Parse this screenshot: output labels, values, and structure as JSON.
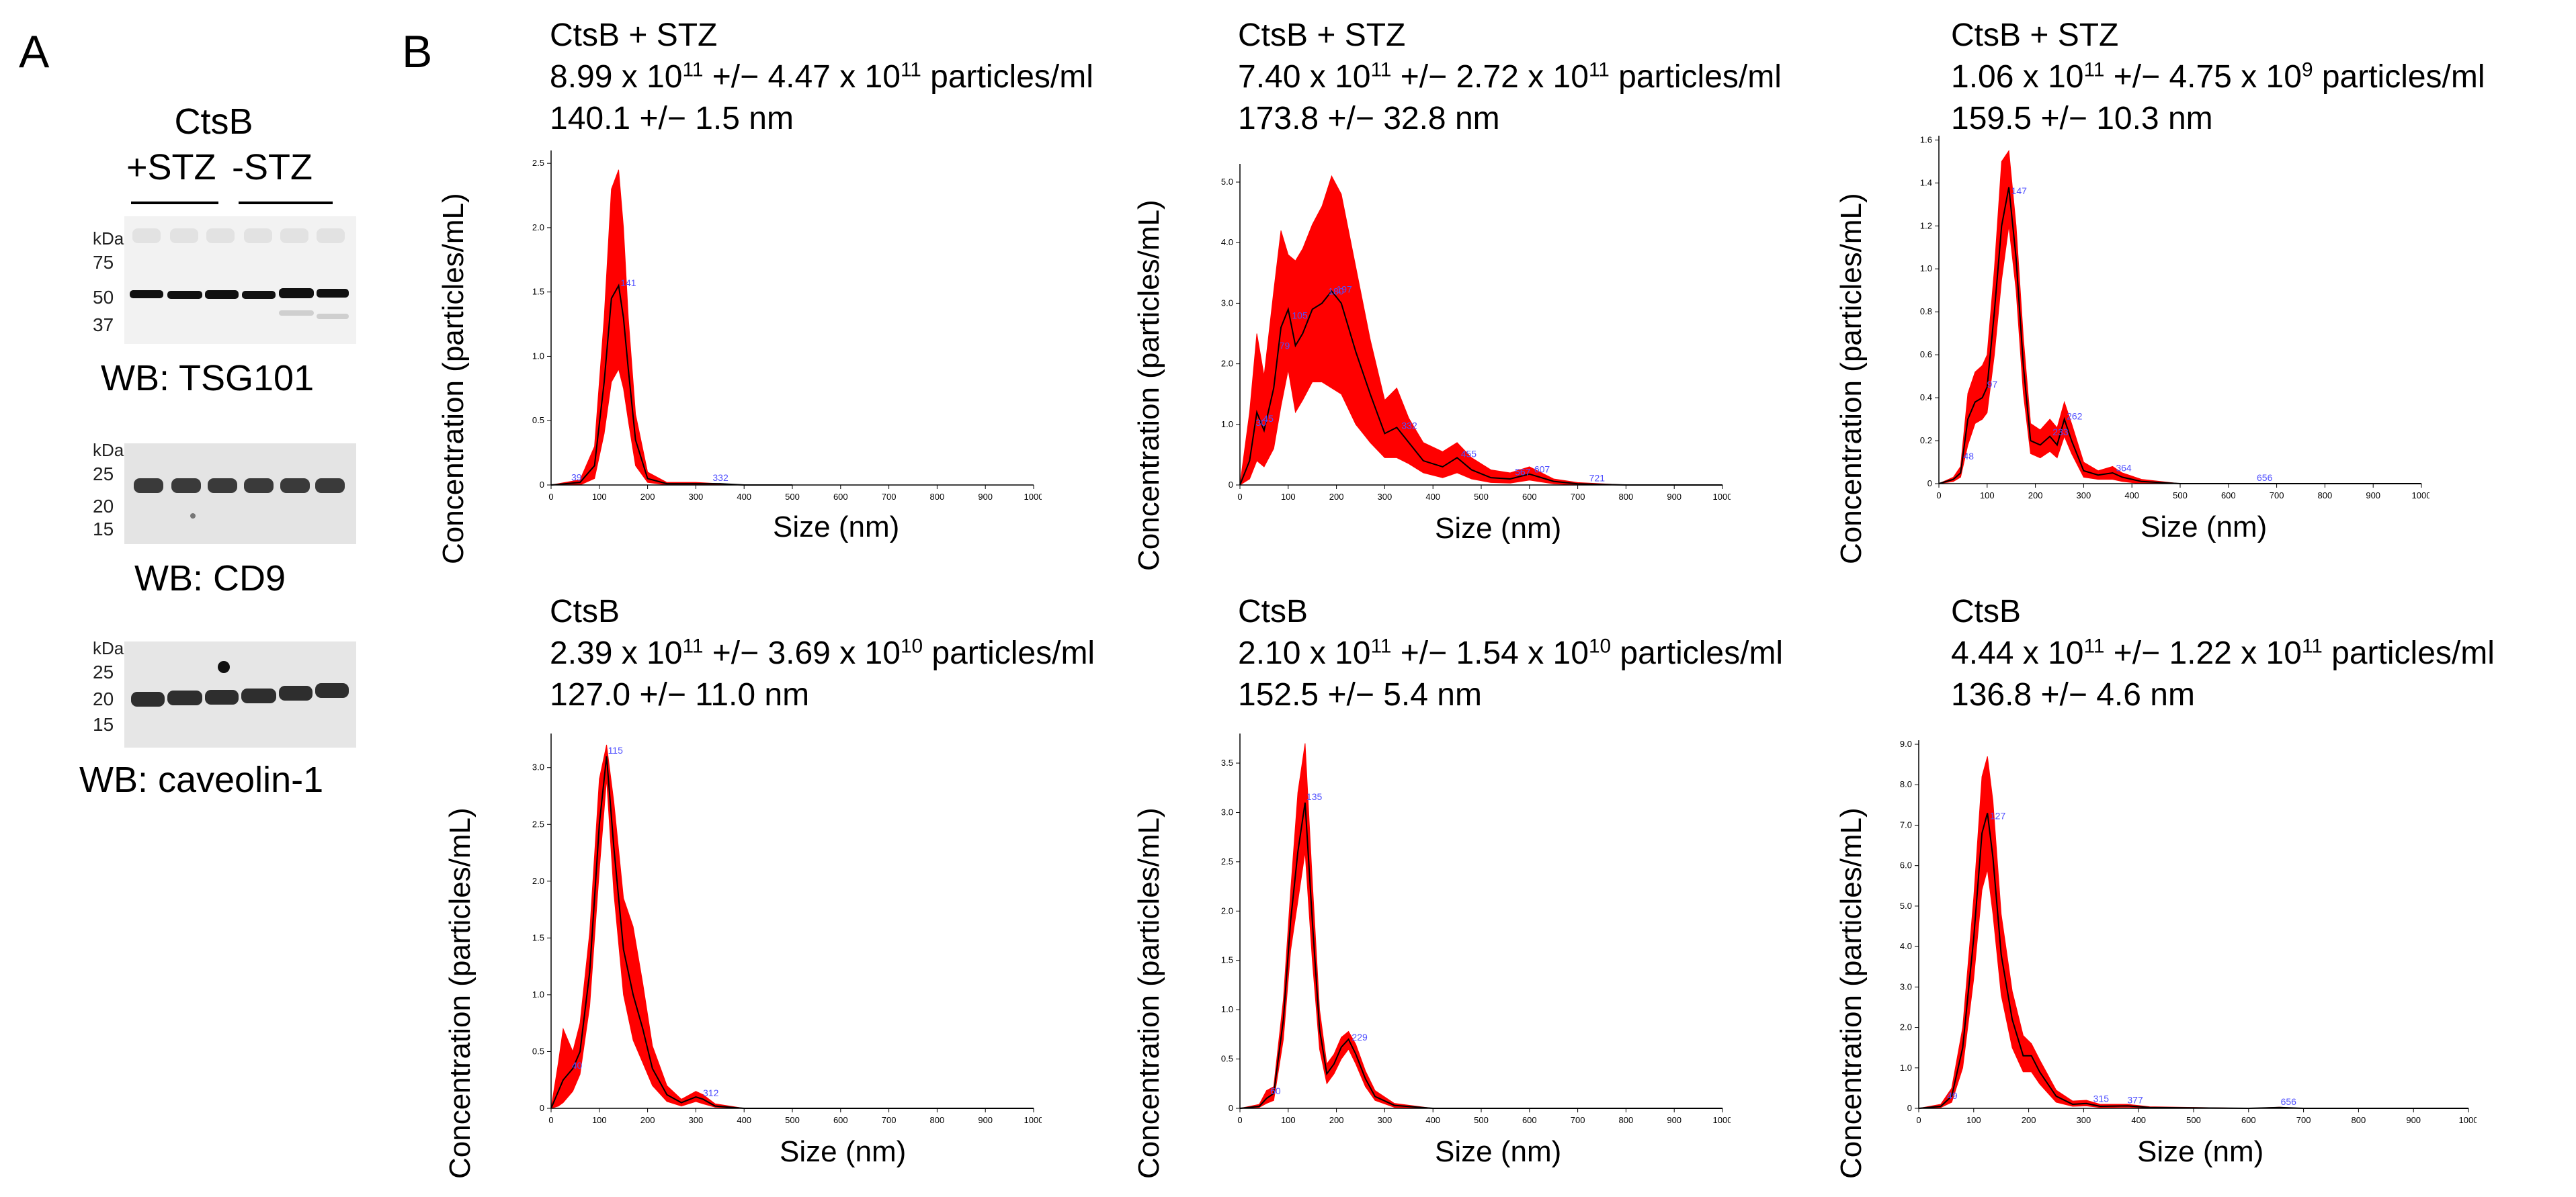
{
  "panel_a": {
    "letter": "A",
    "title_line1": "CtsB",
    "title_plus": "+STZ",
    "title_minus": "-STZ",
    "blots": [
      {
        "id": "tsg101",
        "kda_label": "kDa",
        "markers": [
          "75",
          "50",
          "37"
        ],
        "caption": "WB:  TSG101"
      },
      {
        "id": "cd9",
        "kda_label": "kDa",
        "markers": [
          "25",
          "20",
          "15"
        ],
        "caption": "WB:  CD9"
      },
      {
        "id": "cav1",
        "kda_label": "kDa",
        "markers": [
          "25",
          "20",
          "15"
        ],
        "caption": "WB:  caveolin-1"
      }
    ]
  },
  "panel_b": {
    "letter": "B",
    "accent_color": "#ff0000",
    "line_color": "#000000",
    "peak_label_color": "#5050ff",
    "ylabel": "Concentration  (particles/mL)",
    "xlabel": "Size (nm)"
  },
  "chart_data": [
    {
      "type": "area",
      "group": "CtsB + STZ",
      "header": {
        "name": "CtsB + STZ",
        "conc_a": "8.99",
        "conc_a_exp": "11",
        "conc_b": "4.47",
        "conc_b_exp": "11",
        "size": "140.1 +/− 1.5 nm"
      },
      "xlabel": "Size (nm)",
      "ylabel": "Concentration  (particles/mL)",
      "xlim": [
        0,
        1000
      ],
      "ylim": [
        0,
        2.6
      ],
      "xticks": [
        "0",
        "100",
        "200",
        "300",
        "400",
        "500",
        "600",
        "700",
        "800",
        "900",
        "1000"
      ],
      "yticks": [
        "0",
        "0.5",
        "1.0",
        "1.5",
        "2.0",
        "2.5"
      ],
      "x": [
        0,
        30,
        60,
        90,
        110,
        125,
        140,
        150,
        160,
        175,
        200,
        240,
        300,
        350,
        400,
        500
      ],
      "mean": [
        0,
        0.01,
        0.02,
        0.15,
        0.8,
        1.45,
        1.55,
        1.3,
        0.9,
        0.35,
        0.05,
        0.01,
        0.01,
        0.01,
        0,
        0
      ],
      "upper": [
        0,
        0.02,
        0.04,
        0.3,
        1.3,
        2.3,
        2.45,
        2.0,
        1.3,
        0.55,
        0.1,
        0.02,
        0.02,
        0.01,
        0,
        0
      ],
      "lower": [
        0,
        0,
        0,
        0.05,
        0.4,
        0.8,
        0.9,
        0.75,
        0.5,
        0.15,
        0.02,
        0,
        0,
        0,
        0,
        0
      ],
      "peaks": [
        {
          "x": 39,
          "label": "39"
        },
        {
          "x": 141,
          "label": "141"
        },
        {
          "x": 332,
          "label": "332"
        }
      ]
    },
    {
      "type": "area",
      "group": "CtsB + STZ",
      "header": {
        "name": "CtsB + STZ",
        "conc_a": "7.40",
        "conc_a_exp": "11",
        "conc_b": "2.72",
        "conc_b_exp": "11",
        "size": "173.8 +/− 32.8 nm"
      },
      "xlabel": "Size (nm)",
      "ylabel": "Concentration  (particles/mL)",
      "xlim": [
        0,
        1000
      ],
      "ylim": [
        0,
        5.3
      ],
      "xticks": [
        "0",
        "100",
        "200",
        "300",
        "400",
        "500",
        "600",
        "700",
        "800",
        "900",
        "1000"
      ],
      "yticks": [
        "0",
        "1.0",
        "2.0",
        "3.0",
        "4.0",
        "5.0"
      ],
      "x": [
        0,
        20,
        35,
        50,
        70,
        85,
        100,
        115,
        130,
        150,
        170,
        190,
        210,
        240,
        270,
        300,
        325,
        350,
        380,
        420,
        450,
        480,
        520,
        560,
        600,
        650,
        700,
        800,
        1000
      ],
      "mean": [
        0,
        0.4,
        1.2,
        0.9,
        1.6,
        2.6,
        2.9,
        2.3,
        2.5,
        2.9,
        3.0,
        3.2,
        3.0,
        2.2,
        1.5,
        0.85,
        0.95,
        0.7,
        0.4,
        0.3,
        0.45,
        0.25,
        0.12,
        0.1,
        0.18,
        0.06,
        0.02,
        0,
        0
      ],
      "upper": [
        0,
        1.2,
        2.5,
        1.8,
        3.2,
        4.2,
        3.8,
        3.7,
        3.9,
        4.3,
        4.6,
        5.1,
        4.8,
        3.6,
        2.4,
        1.4,
        1.6,
        1.1,
        0.7,
        0.55,
        0.7,
        0.45,
        0.25,
        0.2,
        0.3,
        0.1,
        0.04,
        0,
        0
      ],
      "lower": [
        0,
        0.1,
        0.4,
        0.3,
        0.6,
        1.3,
        1.9,
        1.2,
        1.4,
        1.7,
        1.7,
        1.6,
        1.5,
        1.0,
        0.7,
        0.45,
        0.45,
        0.35,
        0.2,
        0.12,
        0.2,
        0.1,
        0.04,
        0.03,
        0.08,
        0.02,
        0,
        0,
        0
      ],
      "peaks": [
        {
          "x": 30,
          "label": "30"
        },
        {
          "x": 45,
          "label": "45"
        },
        {
          "x": 79,
          "label": "79"
        },
        {
          "x": 105,
          "label": "105"
        },
        {
          "x": 180,
          "label": "180"
        },
        {
          "x": 197,
          "label": "197"
        },
        {
          "x": 332,
          "label": "332"
        },
        {
          "x": 455,
          "label": "455"
        },
        {
          "x": 567,
          "label": "567"
        },
        {
          "x": 607,
          "label": "607"
        },
        {
          "x": 721,
          "label": "721"
        }
      ]
    },
    {
      "type": "area",
      "group": "CtsB + STZ",
      "header": {
        "name": "CtsB + STZ",
        "conc_a": "1.06",
        "conc_a_exp": "11",
        "conc_b": "4.75",
        "conc_b_exp": "9",
        "size": "159.5 +/− 10.3 nm"
      },
      "xlabel": "Size (nm)",
      "ylabel": "Concentration  (particles/mL)",
      "xlim": [
        0,
        1000
      ],
      "ylim": [
        0,
        1.62
      ],
      "xticks": [
        "0",
        "100",
        "200",
        "300",
        "400",
        "500",
        "600",
        "700",
        "800",
        "900",
        "1000"
      ],
      "yticks": [
        "0",
        "0.2",
        "0.4",
        "0.6",
        "0.8",
        "1.0",
        "1.2",
        "1.4",
        "1.6"
      ],
      "x": [
        0,
        30,
        45,
        60,
        75,
        90,
        100,
        115,
        130,
        145,
        160,
        175,
        190,
        210,
        230,
        245,
        260,
        275,
        300,
        330,
        360,
        380,
        420,
        500,
        700,
        1000
      ],
      "mean": [
        0,
        0.02,
        0.05,
        0.3,
        0.38,
        0.4,
        0.45,
        0.8,
        1.2,
        1.38,
        1.05,
        0.55,
        0.2,
        0.18,
        0.22,
        0.18,
        0.3,
        0.2,
        0.06,
        0.04,
        0.05,
        0.03,
        0.01,
        0,
        0,
        0
      ],
      "upper": [
        0,
        0.03,
        0.08,
        0.42,
        0.52,
        0.55,
        0.6,
        1.0,
        1.5,
        1.55,
        1.2,
        0.68,
        0.28,
        0.25,
        0.3,
        0.26,
        0.38,
        0.28,
        0.1,
        0.06,
        0.08,
        0.05,
        0.02,
        0,
        0,
        0
      ],
      "lower": [
        0,
        0.01,
        0.03,
        0.18,
        0.28,
        0.3,
        0.33,
        0.6,
        0.95,
        1.2,
        0.9,
        0.42,
        0.14,
        0.12,
        0.15,
        0.12,
        0.22,
        0.14,
        0.03,
        0.02,
        0.02,
        0.01,
        0,
        0,
        0,
        0
      ],
      "peaks": [
        {
          "x": 48,
          "label": "48"
        },
        {
          "x": 97,
          "label": "97"
        },
        {
          "x": 147,
          "label": "147"
        },
        {
          "x": 233,
          "label": "233"
        },
        {
          "x": 262,
          "label": "262"
        },
        {
          "x": 364,
          "label": "364"
        },
        {
          "x": 656,
          "label": "656"
        }
      ]
    },
    {
      "type": "area",
      "group": "CtsB",
      "header": {
        "name": "CtsB",
        "conc_a": "2.39",
        "conc_a_exp": "11",
        "conc_b": "3.69",
        "conc_b_exp": "10",
        "size": "127.0 +/− 11.0 nm"
      },
      "xlabel": "Size (nm)",
      "ylabel": "Concentration  (particles/mL)",
      "xlim": [
        0,
        1000
      ],
      "ylim": [
        0,
        3.3
      ],
      "xticks": [
        "0",
        "100",
        "200",
        "300",
        "400",
        "500",
        "600",
        "700",
        "800",
        "900",
        "1000"
      ],
      "yticks": [
        "0",
        "0.5",
        "1.0",
        "1.5",
        "2.0",
        "2.5",
        "3.0"
      ],
      "x": [
        0,
        15,
        25,
        35,
        45,
        60,
        80,
        100,
        115,
        130,
        150,
        170,
        190,
        210,
        240,
        270,
        300,
        315,
        340,
        400,
        1000
      ],
      "mean": [
        0,
        0.15,
        0.25,
        0.3,
        0.35,
        0.5,
        1.2,
        2.5,
        3.1,
        2.3,
        1.4,
        1.0,
        0.7,
        0.35,
        0.12,
        0.05,
        0.1,
        0.08,
        0.02,
        0,
        0
      ],
      "upper": [
        0,
        0.4,
        0.7,
        0.6,
        0.5,
        0.75,
        1.55,
        2.9,
        3.2,
        2.7,
        1.85,
        1.6,
        1.1,
        0.55,
        0.2,
        0.08,
        0.15,
        0.12,
        0.04,
        0,
        0
      ],
      "lower": [
        0,
        0.02,
        0.05,
        0.1,
        0.15,
        0.3,
        0.9,
        2.1,
        2.9,
        1.9,
        1.0,
        0.6,
        0.4,
        0.2,
        0.06,
        0.02,
        0.06,
        0.04,
        0.01,
        0,
        0
      ],
      "peaks": [
        {
          "x": 40,
          "label": "40"
        },
        {
          "x": 115,
          "label": "115"
        },
        {
          "x": 312,
          "label": "312"
        }
      ]
    },
    {
      "type": "area",
      "group": "CtsB",
      "header": {
        "name": "CtsB",
        "conc_a": "2.10",
        "conc_a_exp": "11",
        "conc_b": "1.54",
        "conc_b_exp": "10",
        "size": "152.5 +/− 5.4 nm"
      },
      "xlabel": "Size (nm)",
      "ylabel": "Concentration  (particles/mL)",
      "xlim": [
        0,
        1000
      ],
      "ylim": [
        0,
        3.8
      ],
      "xticks": [
        "0",
        "100",
        "200",
        "300",
        "400",
        "500",
        "600",
        "700",
        "800",
        "900",
        "1000"
      ],
      "yticks": [
        "0",
        "0.5",
        "1.0",
        "1.5",
        "2.0",
        "2.5",
        "3.0",
        "3.5"
      ],
      "x": [
        0,
        40,
        55,
        70,
        90,
        105,
        120,
        135,
        150,
        165,
        180,
        195,
        210,
        225,
        240,
        260,
        280,
        320,
        400,
        1000
      ],
      "mean": [
        0,
        0.02,
        0.1,
        0.15,
        0.9,
        1.9,
        2.6,
        3.1,
        1.9,
        0.8,
        0.35,
        0.45,
        0.62,
        0.7,
        0.55,
        0.3,
        0.12,
        0.03,
        0,
        0
      ],
      "upper": [
        0,
        0.04,
        0.18,
        0.22,
        1.1,
        2.2,
        3.2,
        3.7,
        2.3,
        1.0,
        0.45,
        0.55,
        0.72,
        0.78,
        0.65,
        0.38,
        0.18,
        0.05,
        0,
        0
      ],
      "lower": [
        0,
        0.01,
        0.05,
        0.08,
        0.7,
        1.6,
        2.1,
        2.6,
        1.5,
        0.6,
        0.25,
        0.35,
        0.5,
        0.6,
        0.45,
        0.22,
        0.08,
        0.01,
        0,
        0
      ],
      "peaks": [
        {
          "x": 60,
          "label": "60"
        },
        {
          "x": 135,
          "label": "135"
        },
        {
          "x": 229,
          "label": "229"
        }
      ]
    },
    {
      "type": "area",
      "group": "CtsB",
      "header": {
        "name": "CtsB",
        "conc_a": "4.44",
        "conc_a_exp": "11",
        "conc_b": "1.22",
        "conc_b_exp": "11",
        "size": "136.8 +/− 4.6 nm"
      },
      "xlabel": "Size (nm)",
      "ylabel": "Concentration  (particles/mL)",
      "xlim": [
        0,
        1000
      ],
      "ylim": [
        0,
        9.1
      ],
      "xticks": [
        "0",
        "100",
        "200",
        "300",
        "400",
        "500",
        "600",
        "700",
        "800",
        "900",
        "1000"
      ],
      "yticks": [
        "0",
        "1.0",
        "2.0",
        "3.0",
        "4.0",
        "5.0",
        "6.0",
        "7.0",
        "8.0",
        "9.0"
      ],
      "x": [
        0,
        40,
        60,
        80,
        100,
        115,
        125,
        135,
        150,
        170,
        190,
        205,
        220,
        250,
        280,
        305,
        330,
        380,
        420,
        600,
        656,
        700,
        1000
      ],
      "mean": [
        0,
        0.05,
        0.3,
        1.5,
        4.2,
        6.8,
        7.3,
        6.2,
        3.8,
        2.2,
        1.3,
        1.3,
        0.9,
        0.3,
        0.1,
        0.12,
        0.05,
        0.06,
        0.02,
        0,
        0.02,
        0,
        0
      ],
      "upper": [
        0,
        0.1,
        0.5,
        2.0,
        5.2,
        8.2,
        8.7,
        7.6,
        4.8,
        2.9,
        1.8,
        1.6,
        1.2,
        0.45,
        0.18,
        0.2,
        0.1,
        0.1,
        0.04,
        0,
        0.03,
        0,
        0
      ],
      "lower": [
        0,
        0.02,
        0.15,
        1.0,
        3.2,
        5.4,
        5.9,
        4.8,
        2.8,
        1.5,
        0.9,
        0.9,
        0.6,
        0.15,
        0.05,
        0.06,
        0.02,
        0.03,
        0.01,
        0,
        0.01,
        0,
        0
      ],
      "peaks": [
        {
          "x": 49,
          "label": "49"
        },
        {
          "x": 127,
          "label": "127"
        },
        {
          "x": 315,
          "label": "315"
        },
        {
          "x": 377,
          "label": "377"
        },
        {
          "x": 656,
          "label": "656"
        }
      ]
    }
  ]
}
